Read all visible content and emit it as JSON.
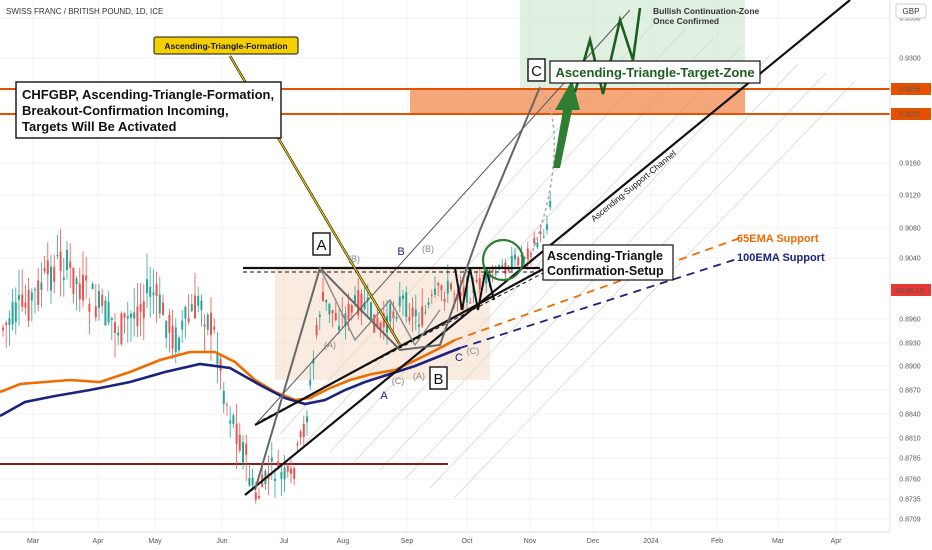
{
  "header": {
    "symbol_title": "SWISS FRANC / BRITISH POUND, 1D, ICE",
    "currency": "GBP"
  },
  "chart_data": {
    "type": "candlestick",
    "title": "SWISS FRANC / BRITISH POUND, 1D, ICE",
    "y_ticks": [
      "0.9350",
      "0.9300",
      "0.9255",
      "0.9225",
      "0.9160",
      "0.9120",
      "0.9080",
      "0.9040",
      "0.8960",
      "0.8930",
      "0.8900",
      "0.8870",
      "0.8840",
      "0.8810",
      "0.8785",
      "0.8760",
      "0.8735",
      "0.8709"
    ],
    "ylim": [
      0.87,
      0.9355
    ],
    "x_ticks": [
      "Mar",
      "Apr",
      "May",
      "Jun",
      "Jul",
      "Aug",
      "Sep",
      "Oct",
      "Nov",
      "Dec",
      "2024",
      "Feb",
      "Mar",
      "Apr"
    ],
    "highlighted_prices": [
      {
        "label": "0.9255",
        "color": "#e65100"
      },
      {
        "label": "0.9225",
        "color": "#e65100"
      }
    ],
    "current_price_tag": "05:56:12",
    "overlays": {
      "ema65_label": "65EMA Support",
      "ema100_label": "100EMA Support",
      "ema65_color": "#ef6c00",
      "ema100_color": "#1a237e"
    }
  },
  "annotations": {
    "main_box": [
      "CHFGBP, Ascending-Triangle-Formation,",
      "Breakout-Confirmation Incoming,",
      "Targets Will Be Activated"
    ],
    "yellow_label": "Ascending-Triangle-Formation",
    "target_zone": "Ascending-Triangle-Target-Zone",
    "bullish_zone": [
      "Bullish Continuation-Zone",
      "Once Confirmed"
    ],
    "confirmation_box": [
      "Ascending-Triangle",
      "Confirmation-Setup"
    ],
    "support_channel": "Ascending-Support-Channel",
    "wave_labels": {
      "big_A": "A",
      "big_B": "B",
      "big_C": "C",
      "small_A": "A",
      "small_B": "B",
      "small_C": "C",
      "paren_A": "(A)",
      "paren_B": "(B)",
      "paren_C": "(C)",
      "paren_A2": "(A)",
      "paren_B2": "(B)",
      "paren_C2": "(C)"
    }
  }
}
